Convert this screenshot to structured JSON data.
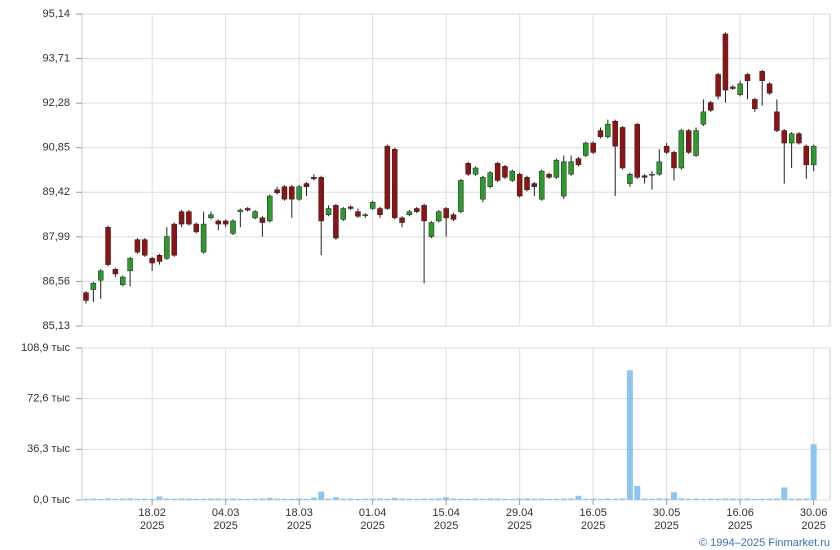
{
  "chart_data": [
    {
      "type": "candlestick",
      "categories": [
        null,
        null,
        null,
        null,
        null,
        null,
        null,
        null,
        null,
        "18.02\n2025",
        null,
        null,
        null,
        null,
        null,
        null,
        null,
        null,
        null,
        "04.03\n2025",
        null,
        null,
        null,
        null,
        null,
        null,
        null,
        null,
        null,
        "18.03\n2025",
        null,
        null,
        null,
        null,
        null,
        null,
        null,
        null,
        null,
        "01.04\n2025",
        null,
        null,
        null,
        null,
        null,
        null,
        null,
        null,
        null,
        "15.04\n2025",
        null,
        null,
        null,
        null,
        null,
        null,
        null,
        null,
        null,
        "29.04\n2025",
        null,
        null,
        null,
        null,
        null,
        null,
        null,
        null,
        null,
        "16.05\n2025",
        null,
        null,
        null,
        null,
        null,
        null,
        null,
        null,
        null,
        "30.05\n2025",
        null,
        null,
        null,
        null,
        null,
        null,
        null,
        null,
        null,
        "16.06\n2025",
        null,
        null,
        null,
        null,
        null,
        null,
        null,
        null,
        null,
        "30.06\n2025"
      ],
      "open": [
        86.2,
        86.3,
        86.6,
        88.3,
        86.95,
        86.45,
        86.9,
        87.9,
        87.9,
        87.3,
        87.4,
        87.3,
        88.4,
        88.8,
        88.8,
        88.4,
        87.5,
        88.6,
        88.5,
        88.5,
        88.1,
        88.8,
        88.9,
        88.6,
        88.6,
        88.5,
        89.5,
        89.6,
        89.6,
        89.2,
        89.7,
        89.9,
        89.9,
        88.7,
        89.0,
        88.55,
        88.95,
        88.8,
        88.7,
        88.9,
        88.9,
        90.9,
        90.8,
        88.6,
        88.7,
        88.9,
        89.0,
        88.0,
        88.5,
        88.9,
        88.7,
        88.8,
        90.35,
        90.0,
        89.2,
        89.6,
        90.35,
        90.25,
        89.8,
        90.0,
        89.9,
        89.7,
        89.2,
        90.0,
        89.9,
        89.3,
        90.0,
        90.5,
        90.6,
        91.0,
        91.4,
        91.2,
        91.7,
        91.5,
        89.7,
        91.6,
        89.95,
        90.0,
        90.0,
        90.9,
        90.7,
        90.2,
        91.4,
        90.6,
        91.6,
        92.3,
        93.2,
        94.5,
        92.8,
        92.55,
        93.2,
        92.4,
        93.3,
        92.9,
        92.0,
        91.4,
        91.0,
        91.3,
        90.9,
        90.3
      ],
      "high": [
        86.25,
        86.55,
        86.95,
        88.35,
        87.0,
        86.75,
        87.35,
        87.95,
        87.95,
        87.35,
        87.45,
        88.3,
        88.45,
        88.85,
        88.85,
        88.45,
        88.8,
        88.8,
        88.55,
        88.55,
        88.55,
        88.9,
        88.95,
        88.85,
        88.65,
        89.35,
        89.6,
        89.65,
        89.65,
        89.65,
        89.75,
        90.0,
        89.95,
        89.0,
        89.05,
        88.95,
        89.0,
        88.9,
        88.75,
        89.15,
        88.95,
        90.95,
        90.85,
        88.65,
        88.85,
        88.95,
        89.05,
        88.5,
        88.85,
        88.95,
        88.75,
        89.85,
        90.4,
        90.25,
        89.95,
        90.1,
        90.4,
        90.3,
        90.15,
        90.05,
        89.95,
        89.75,
        90.15,
        90.05,
        90.5,
        90.6,
        90.6,
        90.55,
        91.05,
        91.05,
        91.5,
        91.75,
        91.75,
        91.55,
        90.05,
        91.65,
        90.0,
        90.1,
        90.8,
        91.0,
        90.75,
        91.45,
        91.45,
        91.5,
        92.4,
        92.35,
        93.25,
        94.55,
        92.85,
        93.0,
        93.25,
        92.45,
        93.35,
        92.95,
        92.4,
        91.45,
        91.35,
        91.35,
        90.95,
        90.95
      ],
      "low": [
        85.85,
        85.9,
        86.0,
        87.05,
        86.7,
        86.4,
        86.4,
        87.45,
        87.35,
        86.9,
        87.1,
        87.25,
        87.35,
        88.3,
        88.35,
        88.1,
        87.45,
        88.55,
        88.2,
        88.3,
        88.05,
        88.3,
        88.8,
        88.55,
        88.0,
        88.45,
        89.35,
        89.15,
        88.6,
        89.15,
        89.3,
        89.8,
        87.4,
        88.65,
        87.9,
        88.5,
        88.85,
        88.6,
        88.6,
        88.85,
        88.6,
        88.85,
        88.55,
        88.3,
        88.65,
        88.75,
        86.5,
        87.95,
        88.45,
        88.0,
        88.5,
        88.75,
        89.95,
        89.95,
        89.1,
        89.55,
        89.75,
        89.85,
        89.75,
        89.25,
        89.45,
        89.3,
        89.15,
        89.85,
        89.85,
        89.2,
        89.95,
        90.25,
        90.55,
        90.65,
        91.15,
        91.15,
        89.3,
        90.15,
        89.6,
        89.85,
        89.7,
        89.5,
        89.95,
        90.65,
        89.8,
        90.15,
        90.65,
        90.55,
        91.55,
        92.0,
        92.4,
        92.3,
        92.7,
        92.5,
        92.4,
        92.0,
        92.2,
        92.55,
        91.35,
        89.7,
        90.2,
        90.95,
        89.85,
        90.1
      ],
      "close": [
        85.95,
        86.5,
        86.9,
        87.1,
        86.8,
        86.7,
        87.3,
        87.5,
        87.4,
        87.15,
        87.2,
        88.0,
        87.4,
        88.4,
        88.4,
        88.15,
        88.4,
        88.7,
        88.4,
        88.4,
        88.5,
        88.85,
        88.85,
        88.8,
        88.45,
        89.3,
        89.4,
        89.2,
        89.2,
        89.6,
        89.6,
        89.85,
        88.5,
        88.9,
        87.95,
        88.9,
        88.9,
        88.65,
        88.7,
        89.1,
        88.7,
        88.9,
        88.6,
        88.45,
        88.8,
        88.8,
        88.5,
        88.45,
        88.8,
        88.6,
        88.55,
        89.8,
        90.0,
        90.2,
        89.9,
        90.05,
        89.8,
        89.9,
        90.1,
        89.3,
        89.5,
        89.6,
        90.1,
        89.9,
        90.45,
        90.4,
        90.4,
        90.3,
        91.0,
        90.7,
        91.2,
        91.6,
        90.9,
        90.2,
        90.0,
        89.9,
        89.9,
        90.0,
        90.4,
        90.7,
        90.2,
        91.4,
        90.7,
        91.4,
        92.0,
        92.05,
        92.5,
        92.7,
        92.75,
        92.9,
        93.0,
        92.1,
        93.0,
        92.6,
        91.4,
        91.0,
        91.3,
        91.0,
        90.3,
        90.9
      ],
      "up_color": "#2e9a2e",
      "down_color": "#8c1414",
      "ylim": [
        85.13,
        95.14
      ],
      "yticks": [
        {
          "value": 85.13,
          "label": "85,13"
        },
        {
          "value": 86.56,
          "label": "86,56"
        },
        {
          "value": 87.99,
          "label": "87,99"
        },
        {
          "value": 89.42,
          "label": "89,42"
        },
        {
          "value": 90.85,
          "label": "90,85"
        },
        {
          "value": 92.28,
          "label": "92,28"
        },
        {
          "value": 93.71,
          "label": "93,71"
        },
        {
          "value": 95.14,
          "label": "95,14"
        }
      ],
      "grid": true
    },
    {
      "type": "bar",
      "values": [
        900,
        1000,
        800,
        1100,
        900,
        1000,
        1200,
        900,
        1000,
        800,
        2500,
        1000,
        900,
        1100,
        1000,
        800,
        900,
        1000,
        1100,
        900,
        1000,
        900,
        800,
        1000,
        1100,
        1500,
        1000,
        900,
        800,
        1000,
        900,
        1800,
        6000,
        1000,
        2000,
        900,
        1000,
        800,
        900,
        1000,
        1100,
        900,
        1500,
        1000,
        900,
        800,
        1000,
        900,
        1100,
        2000,
        1000,
        900,
        800,
        1000,
        900,
        1100,
        1000,
        900,
        800,
        1000,
        1100,
        900,
        1000,
        800,
        900,
        1000,
        1100,
        3000,
        900,
        1000,
        800,
        1000,
        900,
        1100,
        93000,
        10000,
        1000,
        900,
        1100,
        1000,
        5500,
        1200,
        900,
        1000,
        800,
        1000,
        900,
        1100,
        1000,
        900,
        1000,
        800,
        900,
        1000,
        1100,
        9000,
        900,
        1000,
        1100,
        40000
      ],
      "color": "#8ec5ee",
      "ylim": [
        0,
        108900
      ],
      "yticks": [
        {
          "value": 0,
          "label": "0,0 тыс"
        },
        {
          "value": 36300,
          "label": "36,3 тыс"
        },
        {
          "value": 72600,
          "label": "72,6 тыс"
        },
        {
          "value": 108900,
          "label": "108,9 тыс"
        }
      ],
      "grid": true
    }
  ],
  "footer": "© 1994–2025 Finmarket.ru"
}
